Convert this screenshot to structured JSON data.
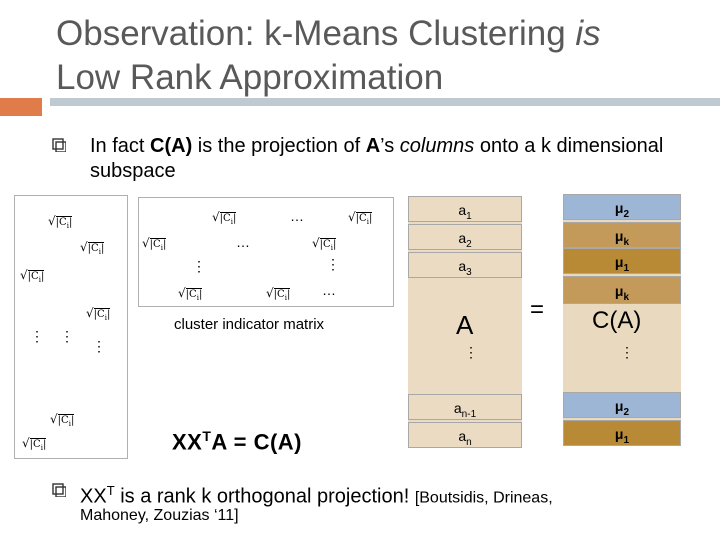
{
  "title": "Observation: k-Means Clustering is Low Rank Approximation",
  "title_parts": {
    "prefix": "Observation: k-Means Clustering ",
    "emph": "is",
    "suffix": "Low Rank Approximation"
  },
  "bullet1": {
    "p1": "In fact ",
    "b1": "C(A)",
    "p2": " is the projection of ",
    "b2": "A",
    "p3": "’s ",
    "i1": "columns",
    "p4": " onto a k dimensional subspace"
  },
  "weight_label": "√|C",
  "weight_sub": "i",
  "hdots": "…",
  "vdots": "⋮",
  "cluster_label": "cluster indicator matrix",
  "formula": {
    "x1": "XX",
    "t": "T",
    "rest": "A = C(A)"
  },
  "equals": "=",
  "A_label": "A",
  "CA_label": "C(A)",
  "a_cells": [
    {
      "base": "a",
      "sub": "1"
    },
    {
      "base": "a",
      "sub": "2"
    },
    {
      "base": "a",
      "sub": "3"
    },
    {
      "base": "a",
      "sub": "n-1"
    },
    {
      "base": "a",
      "sub": "n"
    }
  ],
  "mu_cells": [
    {
      "base": "μ",
      "sub": "2"
    },
    {
      "base": "μ",
      "sub": "k"
    },
    {
      "base": "μ",
      "sub": "1"
    },
    {
      "base": "μ",
      "sub": "k"
    },
    {
      "base": "μ",
      "sub": "2"
    },
    {
      "base": "μ",
      "sub": "1"
    }
  ],
  "bullet2": {
    "x": "XX",
    "t": "T",
    "rest": " is a rank k orthogonal projection! ",
    "small": "[Boutsidis, Drineas,"
  },
  "citation": "Mahoney, Zouzias ‘11]",
  "colors": {
    "title": "#595959",
    "accent": "#e07b4a",
    "rule": "#bfc9d1",
    "a_fill": "#eadbc2",
    "mu_blue": "#9db6d6",
    "mu_brown": "#c49a5b",
    "mu_dark": "#b88a36",
    "panel": "#e8d9bf"
  }
}
